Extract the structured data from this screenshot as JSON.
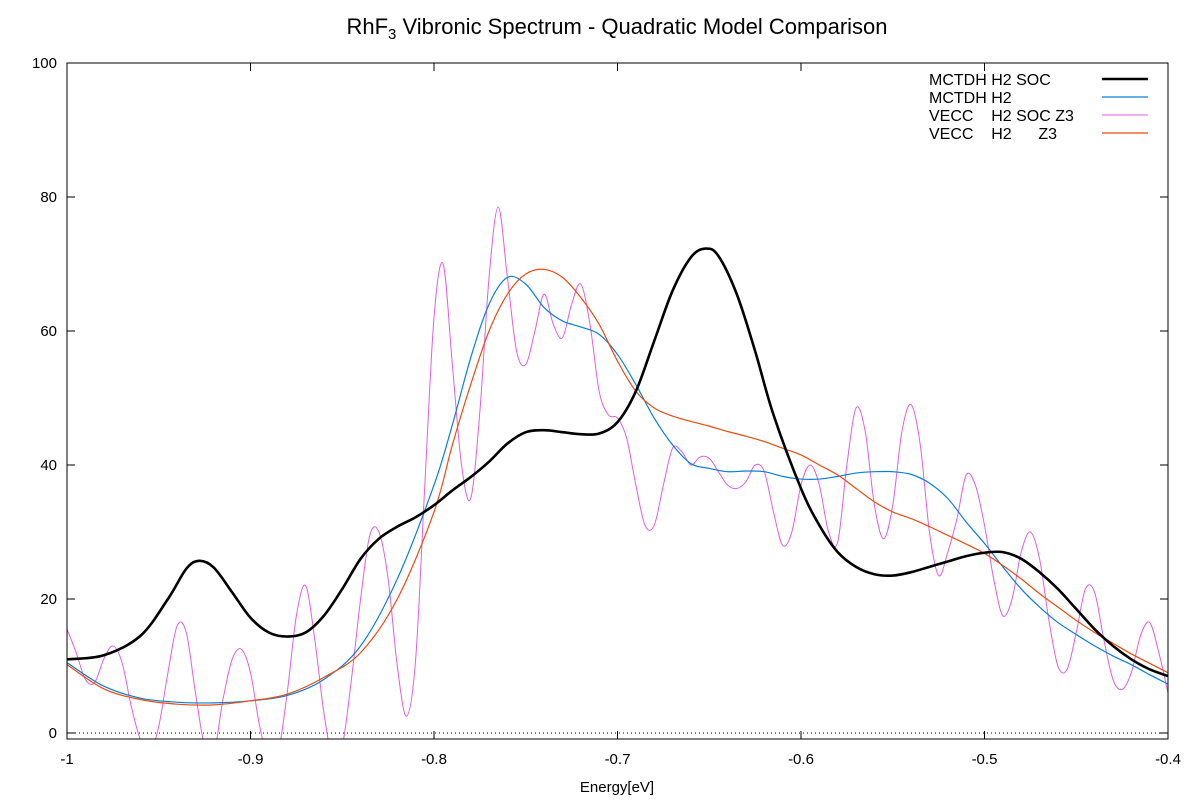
{
  "chart_data": {
    "type": "line",
    "title_main": "RhF",
    "title_sub": "3",
    "title_rest": " Vibronic Spectrum - Quadratic Model Comparison",
    "xlabel": "Energy[eV]",
    "ylabel": "",
    "xlim": [
      -1.0,
      -0.4
    ],
    "ylim": [
      0,
      100
    ],
    "x_ticks": [
      -1.0,
      -0.9,
      -0.8,
      -0.7,
      -0.6,
      -0.5,
      -0.4
    ],
    "x_tick_labels": [
      "-1",
      "-0.9",
      "-0.8",
      "-0.7",
      "-0.6",
      "-0.5",
      "-0.4"
    ],
    "y_ticks": [
      0,
      20,
      40,
      60,
      80,
      100
    ],
    "y_tick_labels": [
      "0",
      "20",
      "40",
      "60",
      "80",
      "100"
    ],
    "grid": false,
    "legend_position": "top-right",
    "baseline_dotted": true,
    "series": [
      {
        "name": "MCTDH H2 SOC",
        "color": "#000000",
        "width": 2.6,
        "x": [
          -1.0,
          -0.98,
          -0.96,
          -0.945,
          -0.935,
          -0.928,
          -0.92,
          -0.91,
          -0.9,
          -0.89,
          -0.88,
          -0.87,
          -0.86,
          -0.85,
          -0.84,
          -0.83,
          -0.82,
          -0.81,
          -0.8,
          -0.79,
          -0.78,
          -0.77,
          -0.76,
          -0.75,
          -0.74,
          -0.73,
          -0.72,
          -0.71,
          -0.7,
          -0.69,
          -0.68,
          -0.67,
          -0.66,
          -0.652,
          -0.645,
          -0.635,
          -0.625,
          -0.615,
          -0.6,
          -0.59,
          -0.58,
          -0.57,
          -0.56,
          -0.55,
          -0.54,
          -0.53,
          -0.52,
          -0.51,
          -0.5,
          -0.49,
          -0.48,
          -0.47,
          -0.46,
          -0.45,
          -0.44,
          -0.43,
          -0.42,
          -0.41,
          -0.4
        ],
        "y": [
          11,
          11.6,
          14.5,
          20,
          24.5,
          25.7,
          24.7,
          21,
          17.2,
          15,
          14.4,
          15,
          17.5,
          21.5,
          26,
          29,
          30.8,
          32.2,
          34,
          36.2,
          38.2,
          40.5,
          43.2,
          44.9,
          45.2,
          44.9,
          44.6,
          44.7,
          46.4,
          51,
          58.5,
          66,
          71,
          72.3,
          71.2,
          65.5,
          57,
          47.5,
          36.5,
          31,
          27,
          24.8,
          23.7,
          23.5,
          24,
          24.8,
          25.6,
          26.4,
          26.9,
          27,
          26,
          24,
          21.5,
          18.5,
          15.5,
          13,
          11,
          9.5,
          8.5
        ]
      },
      {
        "name": "MCTDH H2",
        "color": "#0a7fd8",
        "width": 1.2,
        "x": [
          -1.0,
          -0.98,
          -0.96,
          -0.94,
          -0.92,
          -0.9,
          -0.88,
          -0.86,
          -0.84,
          -0.82,
          -0.8,
          -0.79,
          -0.78,
          -0.77,
          -0.76,
          -0.75,
          -0.74,
          -0.73,
          -0.72,
          -0.71,
          -0.7,
          -0.69,
          -0.68,
          -0.67,
          -0.66,
          -0.65,
          -0.64,
          -0.63,
          -0.62,
          -0.61,
          -0.6,
          -0.59,
          -0.58,
          -0.57,
          -0.56,
          -0.55,
          -0.54,
          -0.53,
          -0.52,
          -0.51,
          -0.5,
          -0.49,
          -0.48,
          -0.47,
          -0.46,
          -0.45,
          -0.44,
          -0.43,
          -0.42,
          -0.41,
          -0.4
        ],
        "y": [
          10.5,
          7,
          5.2,
          4.6,
          4.5,
          4.8,
          5.6,
          8,
          13,
          23,
          37,
          46,
          56,
          64,
          68,
          67,
          63.5,
          61.5,
          60.6,
          59.5,
          56.5,
          52,
          47,
          43,
          40.2,
          39.5,
          39,
          39.1,
          39,
          38.3,
          37.9,
          37.9,
          38.3,
          38.8,
          39,
          39,
          38.6,
          37.3,
          35,
          31.5,
          28.3,
          24.8,
          21.5,
          18.8,
          16.5,
          14.7,
          13,
          11.5,
          10.2,
          8.7,
          7.3
        ]
      },
      {
        "name": "VECC    H2 SOC Z3",
        "color": "#e060e0",
        "width": 1.0,
        "x": [
          -1.0,
          -0.995,
          -0.99,
          -0.985,
          -0.98,
          -0.975,
          -0.97,
          -0.965,
          -0.96,
          -0.955,
          -0.95,
          -0.945,
          -0.94,
          -0.935,
          -0.93,
          -0.925,
          -0.92,
          -0.915,
          -0.91,
          -0.905,
          -0.9,
          -0.895,
          -0.89,
          -0.885,
          -0.88,
          -0.875,
          -0.87,
          -0.865,
          -0.86,
          -0.855,
          -0.85,
          -0.845,
          -0.84,
          -0.835,
          -0.83,
          -0.825,
          -0.82,
          -0.815,
          -0.81,
          -0.805,
          -0.8,
          -0.795,
          -0.79,
          -0.785,
          -0.78,
          -0.775,
          -0.77,
          -0.765,
          -0.76,
          -0.755,
          -0.75,
          -0.745,
          -0.74,
          -0.735,
          -0.73,
          -0.725,
          -0.72,
          -0.715,
          -0.71,
          -0.705,
          -0.7,
          -0.695,
          -0.69,
          -0.685,
          -0.68,
          -0.675,
          -0.67,
          -0.665,
          -0.66,
          -0.655,
          -0.65,
          -0.645,
          -0.64,
          -0.635,
          -0.63,
          -0.625,
          -0.62,
          -0.615,
          -0.61,
          -0.605,
          -0.6,
          -0.595,
          -0.59,
          -0.585,
          -0.58,
          -0.575,
          -0.57,
          -0.565,
          -0.56,
          -0.555,
          -0.55,
          -0.545,
          -0.54,
          -0.535,
          -0.53,
          -0.525,
          -0.52,
          -0.515,
          -0.51,
          -0.505,
          -0.5,
          -0.495,
          -0.49,
          -0.485,
          -0.48,
          -0.475,
          -0.47,
          -0.465,
          -0.46,
          -0.455,
          -0.45,
          -0.445,
          -0.44,
          -0.435,
          -0.43,
          -0.425,
          -0.42,
          -0.415,
          -0.41,
          -0.405,
          -0.4
        ],
        "y": [
          15.5,
          12,
          8,
          7.5,
          11,
          13,
          10.5,
          4,
          -1,
          -3,
          1,
          9,
          16,
          15,
          6,
          -2,
          -3,
          5,
          11,
          12.5,
          9,
          1,
          -4,
          -3,
          6,
          17.5,
          22,
          14,
          3,
          -4,
          -2,
          8,
          20,
          29.5,
          30,
          23,
          10,
          2.5,
          11,
          37,
          62,
          70,
          55,
          40,
          35,
          48,
          68,
          78.5,
          68,
          57,
          55,
          60,
          65.5,
          61,
          59,
          64,
          67,
          61,
          51,
          47.5,
          47,
          44,
          37,
          31,
          31,
          37,
          42.5,
          42,
          40,
          41.2,
          41,
          39,
          37,
          36.5,
          37.5,
          40,
          39,
          33,
          28,
          30,
          37,
          40,
          37,
          30,
          28.5,
          40,
          48.5,
          45,
          34,
          29,
          34,
          45,
          49,
          43,
          30,
          23.5,
          27,
          32,
          38.5,
          37,
          31,
          23,
          17.5,
          20,
          27,
          30,
          26,
          17,
          10,
          9.5,
          15,
          21.5,
          21,
          14,
          8,
          6.5,
          9,
          14.5,
          16.5,
          12,
          6
        ]
      },
      {
        "name": "VECC    H2      Z3",
        "color": "#ee4b11",
        "width": 1.2,
        "x": [
          -1.0,
          -0.98,
          -0.96,
          -0.94,
          -0.92,
          -0.9,
          -0.88,
          -0.86,
          -0.84,
          -0.82,
          -0.8,
          -0.79,
          -0.78,
          -0.77,
          -0.76,
          -0.75,
          -0.74,
          -0.73,
          -0.72,
          -0.71,
          -0.7,
          -0.69,
          -0.68,
          -0.67,
          -0.66,
          -0.65,
          -0.64,
          -0.63,
          -0.62,
          -0.61,
          -0.6,
          -0.59,
          -0.58,
          -0.57,
          -0.56,
          -0.55,
          -0.54,
          -0.53,
          -0.52,
          -0.51,
          -0.5,
          -0.49,
          -0.48,
          -0.47,
          -0.46,
          -0.45,
          -0.44,
          -0.43,
          -0.42,
          -0.41,
          -0.4
        ],
        "y": [
          10.2,
          6.6,
          5,
          4.3,
          4.2,
          4.8,
          5.8,
          8.3,
          12,
          20,
          33,
          43,
          52,
          60,
          65.5,
          68.5,
          69.2,
          68,
          65,
          61,
          55.5,
          51,
          48.5,
          47.3,
          46.5,
          45.8,
          45,
          44.3,
          43.5,
          42.5,
          41.5,
          40,
          38.5,
          36.5,
          34.5,
          33,
          32,
          30.8,
          29.5,
          28.2,
          26.8,
          25,
          23,
          20.8,
          18.8,
          16.8,
          15,
          13.4,
          11.8,
          10.4,
          9
        ]
      }
    ]
  }
}
